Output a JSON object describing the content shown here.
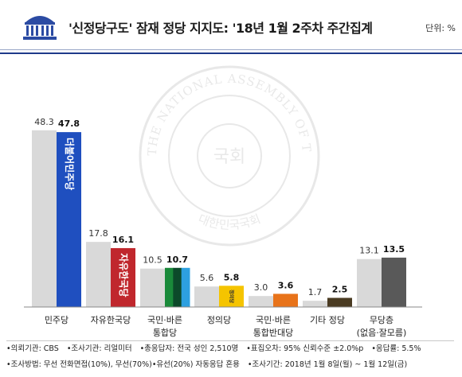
{
  "header": {
    "title": "'신정당구도' 잠재 정당 지지도: '18년 1월 2주차 주간집계",
    "unit": "단위: %"
  },
  "watermark": {
    "ring_text": "THE NATIONAL ASSEMBLY OF THE REPUBLIC OF KOREA",
    "center_text": "국회",
    "bottom_text": "대한민국국회"
  },
  "chart_data": {
    "type": "bar",
    "categories": [
      [
        "민주당"
      ],
      [
        "자유한국당"
      ],
      [
        "국민·바른",
        "통합당"
      ],
      [
        "정의당"
      ],
      [
        "국민·바른",
        "통합반대당"
      ],
      [
        "기타 정당"
      ],
      [
        "무당층",
        "(없음·잘모름)"
      ]
    ],
    "series": [
      {
        "values": [
          48.3,
          17.8,
          10.5,
          5.6,
          3.0,
          1.7,
          13.1
        ],
        "color": "#d9d9d9"
      },
      {
        "values": [
          47.8,
          16.1,
          10.7,
          5.8,
          3.6,
          2.5,
          13.5
        ]
      }
    ],
    "bar_colors": [
      "#1f4fbf",
      "#c0272d",
      "multi",
      "#f5c400",
      "#e8731a",
      "#4a3b22",
      "#595959"
    ],
    "bar_logos": [
      "더불어민주당",
      "자유한국당",
      "",
      "정의당",
      "",
      "",
      ""
    ],
    "ylim": [
      0,
      50
    ]
  },
  "footer": {
    "line1": [
      "•의뢰기관: CBS",
      "•조사기관: 리얼미터",
      "•총응답자: 전국 성인 2,510명",
      "•표집오차: 95% 신뢰수준 ±2.0%p",
      "•응답률: 5.5%"
    ],
    "line2": [
      "•조사방법: 무선 전화면접(10%), 무선(70%)•유선(20%) 자동응답 혼용",
      "•조사기간: 2018년 1월 8일(월) ~ 1월 12일(금)"
    ]
  },
  "colors": {
    "header_rule": "#1f3a8a",
    "old_bar": "#d9d9d9",
    "multi_bar_segments": [
      "#1a8a3a",
      "#0c4a2a",
      "#2da0e0"
    ]
  }
}
